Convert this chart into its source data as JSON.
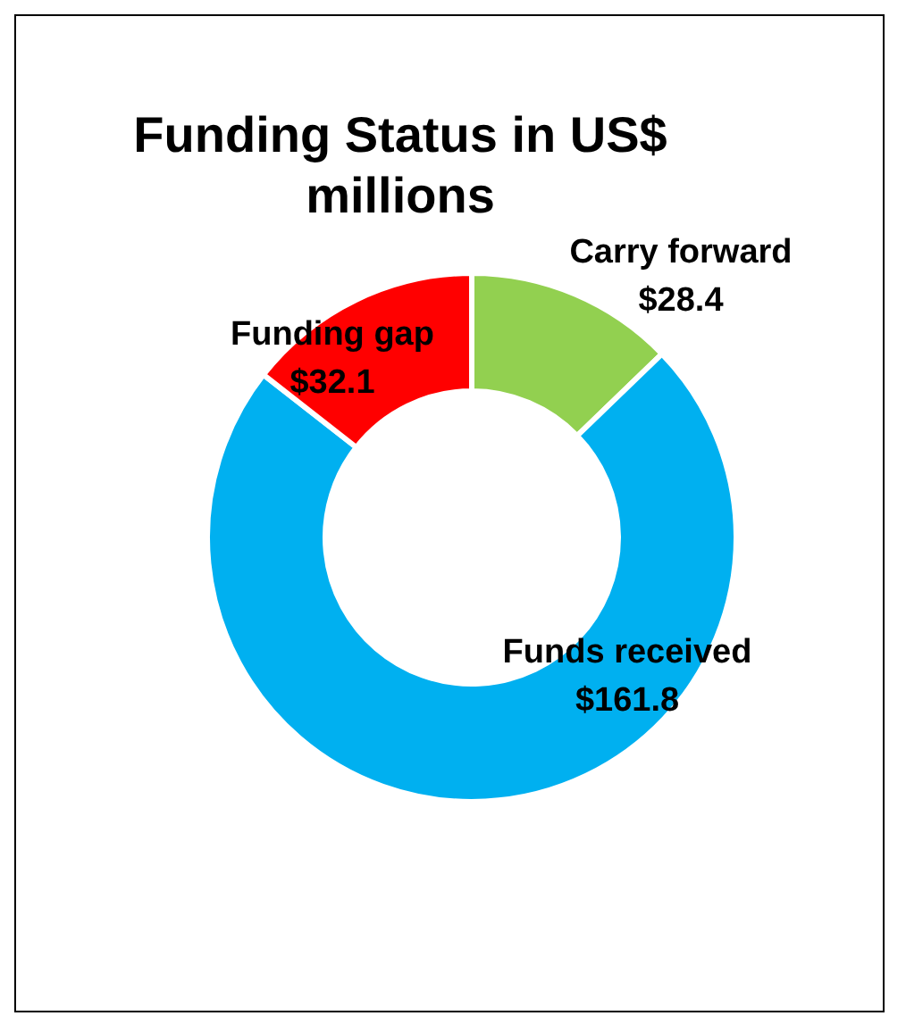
{
  "chart_data": {
    "type": "donut",
    "title": "Funding Status in US$ millions",
    "categories": [
      "Carry forward",
      "Funds received",
      "Funding gap"
    ],
    "values": [
      28.4,
      161.8,
      32.1
    ],
    "colors": [
      "#92d050",
      "#00b0f0",
      "#ff0000"
    ],
    "value_labels": [
      "$28.4",
      "$161.8",
      "$32.1"
    ]
  }
}
